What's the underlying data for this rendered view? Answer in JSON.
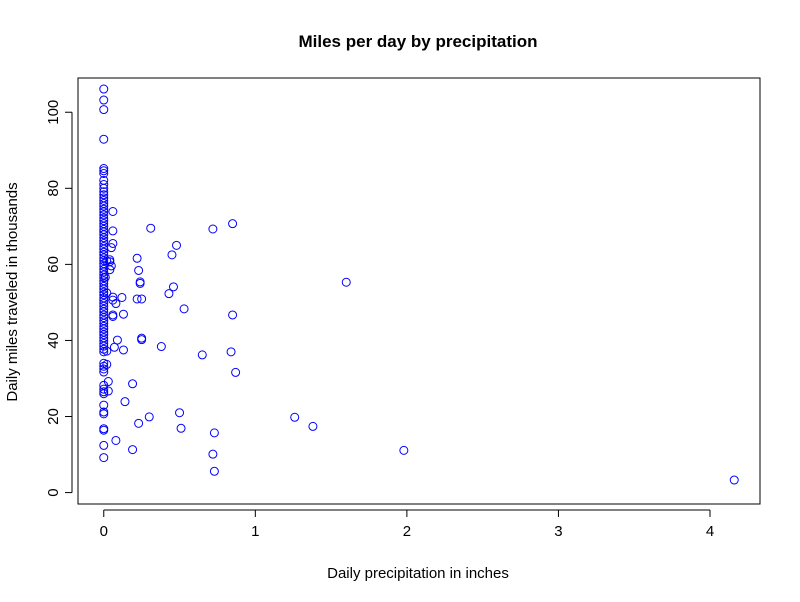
{
  "chart_data": {
    "type": "scatter",
    "title": "Miles per day by precipitation",
    "xlabel": "Daily precipitation in inches",
    "ylabel": "Daily miles traveled in thousands",
    "xlim": [
      -0.17,
      4.33
    ],
    "ylim": [
      -3,
      109
    ],
    "x_ticks": [
      0,
      1,
      2,
      3,
      4
    ],
    "y_ticks": [
      0,
      20,
      40,
      60,
      80,
      100
    ],
    "grid": false,
    "legend": "none",
    "marker_color": "#0000ff",
    "points": [
      [
        0,
        106.1
      ],
      [
        0,
        103.2
      ],
      [
        0,
        100.7
      ],
      [
        0,
        92.9
      ],
      [
        0,
        85.2
      ],
      [
        0,
        84.6
      ],
      [
        0,
        83.9
      ],
      [
        0,
        82.1
      ],
      [
        0,
        81.0
      ],
      [
        0,
        80.0
      ],
      [
        0,
        79.1
      ],
      [
        0,
        78.3
      ],
      [
        0,
        77.5
      ],
      [
        0,
        76.8
      ],
      [
        0,
        76.0
      ],
      [
        0,
        75.3
      ],
      [
        0,
        74.5
      ],
      [
        0,
        73.8
      ],
      [
        0,
        73.0
      ],
      [
        0,
        72.2
      ],
      [
        0,
        71.5
      ],
      [
        0,
        70.7
      ],
      [
        0,
        70.0
      ],
      [
        0,
        69.2
      ],
      [
        0,
        68.5
      ],
      [
        0,
        67.8
      ],
      [
        0,
        67.0
      ],
      [
        0,
        66.2
      ],
      [
        0,
        65.5
      ],
      [
        0,
        64.7
      ],
      [
        0,
        64.0
      ],
      [
        0,
        63.2
      ],
      [
        0,
        62.5
      ],
      [
        0,
        61.7
      ],
      [
        0,
        61.0
      ],
      [
        0,
        60.2
      ],
      [
        0,
        59.5
      ],
      [
        0,
        58.7
      ],
      [
        0,
        58.0
      ],
      [
        0,
        57.2
      ],
      [
        0,
        56.5
      ],
      [
        0,
        55.7
      ],
      [
        0,
        55.0
      ],
      [
        0,
        54.2
      ],
      [
        0,
        53.5
      ],
      [
        0,
        52.7
      ],
      [
        0,
        52.0
      ],
      [
        0,
        51.2
      ],
      [
        0,
        50.5
      ],
      [
        0,
        49.7
      ],
      [
        0,
        49.0
      ],
      [
        0,
        48.2
      ],
      [
        0,
        47.5
      ],
      [
        0,
        46.7
      ],
      [
        0,
        46.0
      ],
      [
        0,
        45.2
      ],
      [
        0,
        44.5
      ],
      [
        0,
        43.7
      ],
      [
        0,
        43.0
      ],
      [
        0,
        42.2
      ],
      [
        0,
        41.5
      ],
      [
        0,
        40.7
      ],
      [
        0,
        40.0
      ],
      [
        0,
        39.2
      ],
      [
        0,
        38.5
      ],
      [
        0,
        37.7
      ],
      [
        0,
        37.0
      ],
      [
        0,
        34.0
      ],
      [
        0,
        33.2
      ],
      [
        0,
        32.5
      ],
      [
        0,
        31.7
      ],
      [
        0,
        28.2
      ],
      [
        0,
        27.2
      ],
      [
        0,
        26.5
      ],
      [
        0,
        26.0
      ],
      [
        0,
        23.0
      ],
      [
        0,
        21.2
      ],
      [
        0,
        20.7
      ],
      [
        0,
        16.8
      ],
      [
        0,
        16.4
      ],
      [
        0,
        12.4
      ],
      [
        0,
        9.2
      ],
      [
        0.01,
        56.6
      ],
      [
        0.02,
        60.9
      ],
      [
        0.02,
        52.5
      ],
      [
        0.02,
        37.2
      ],
      [
        0.02,
        33.7
      ],
      [
        0.03,
        29.2
      ],
      [
        0.03,
        26.7
      ],
      [
        0.04,
        61.2
      ],
      [
        0.04,
        60.7
      ],
      [
        0.04,
        58.6
      ],
      [
        0.05,
        64.4
      ],
      [
        0.05,
        59.6
      ],
      [
        0.06,
        73.9
      ],
      [
        0.06,
        68.8
      ],
      [
        0.06,
        65.5
      ],
      [
        0.06,
        51.4
      ],
      [
        0.06,
        50.6
      ],
      [
        0.06,
        46.7
      ],
      [
        0.06,
        46.3
      ],
      [
        0.07,
        38.2
      ],
      [
        0.08,
        49.7
      ],
      [
        0.08,
        13.7
      ],
      [
        0.09,
        40.1
      ],
      [
        0.12,
        51.3
      ],
      [
        0.13,
        46.9
      ],
      [
        0.13,
        37.5
      ],
      [
        0.14,
        23.9
      ],
      [
        0.19,
        28.6
      ],
      [
        0.19,
        11.3
      ],
      [
        0.22,
        61.6
      ],
      [
        0.22,
        50.9
      ],
      [
        0.23,
        58.4
      ],
      [
        0.23,
        18.2
      ],
      [
        0.24,
        55.4
      ],
      [
        0.24,
        55.0
      ],
      [
        0.25,
        50.9
      ],
      [
        0.25,
        40.6
      ],
      [
        0.25,
        40.2
      ],
      [
        0.3,
        19.9
      ],
      [
        0.31,
        69.5
      ],
      [
        0.38,
        38.4
      ],
      [
        0.43,
        52.3
      ],
      [
        0.45,
        62.5
      ],
      [
        0.46,
        54.1
      ],
      [
        0.48,
        65.0
      ],
      [
        0.5,
        21.0
      ],
      [
        0.51,
        16.9
      ],
      [
        0.53,
        48.3
      ],
      [
        0.65,
        36.2
      ],
      [
        0.72,
        69.3
      ],
      [
        0.72,
        10.1
      ],
      [
        0.73,
        15.7
      ],
      [
        0.73,
        5.6
      ],
      [
        0.84,
        37.0
      ],
      [
        0.85,
        70.7
      ],
      [
        0.85,
        46.7
      ],
      [
        0.87,
        31.6
      ],
      [
        1.26,
        19.8
      ],
      [
        1.38,
        17.4
      ],
      [
        1.6,
        55.3
      ],
      [
        1.98,
        11.1
      ],
      [
        4.16,
        3.3
      ]
    ]
  }
}
